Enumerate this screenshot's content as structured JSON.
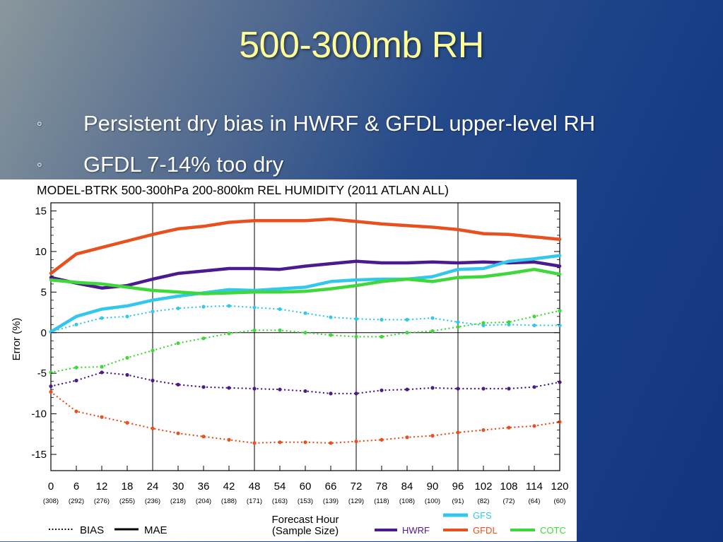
{
  "slide": {
    "title": "500-300mb RH",
    "bullets": [
      "Persistent dry bias in HWRF & GFDL upper-level RH",
      "GFDL 7-14% too dry"
    ],
    "bullet_glyph": "◦"
  },
  "chart_data": {
    "type": "line",
    "title": "MODEL-BTRK 500-300hPa 200-800km REL HUMIDITY (2011 ATLAN ALL)",
    "xlabel": "Forecast Hour",
    "xlabel2": "(Sample Size)",
    "ylabel": "Error (%)",
    "x": [
      0,
      6,
      12,
      18,
      24,
      30,
      36,
      42,
      48,
      54,
      60,
      66,
      72,
      78,
      84,
      90,
      96,
      102,
      108,
      114,
      120
    ],
    "sample_sizes": [
      "(308)",
      "(292)",
      "(276)",
      "(255)",
      "(236)",
      "(218)",
      "(204)",
      "(188)",
      "(171)",
      "(163)",
      "(153)",
      "(139)",
      "(129)",
      "(118)",
      "(108)",
      "(100)",
      "(91)",
      "(82)",
      "(72)",
      "(64)",
      "(60)"
    ],
    "xlim": [
      0,
      120
    ],
    "ylim": [
      -17,
      16
    ],
    "yticks": [
      15,
      10,
      5,
      0,
      -5,
      -10,
      -15
    ],
    "vertical_gridlines": [
      24,
      48,
      72,
      96
    ],
    "line_styles": {
      "BIAS": "dotted",
      "MAE": "solid"
    },
    "series": [
      {
        "name": "HWRF",
        "color": "#4b1a8e",
        "metric": "MAE",
        "values": [
          6.8,
          6.1,
          5.5,
          5.8,
          6.6,
          7.3,
          7.6,
          7.9,
          7.9,
          7.8,
          8.2,
          8.5,
          8.8,
          8.6,
          8.6,
          8.7,
          8.6,
          8.7,
          8.6,
          8.7,
          8.2
        ]
      },
      {
        "name": "GFDL",
        "color": "#e8501e",
        "metric": "MAE",
        "values": [
          7.3,
          9.7,
          10.5,
          11.3,
          12.1,
          12.8,
          13.1,
          13.6,
          13.8,
          13.8,
          13.8,
          14.0,
          13.7,
          13.4,
          13.2,
          13.0,
          12.7,
          12.2,
          12.1,
          11.8,
          11.5
        ]
      },
      {
        "name": "GFS",
        "color": "#33c7ee",
        "metric": "MAE",
        "values": [
          0.1,
          2.0,
          2.9,
          3.3,
          4.0,
          4.5,
          4.9,
          5.3,
          5.2,
          5.4,
          5.6,
          6.3,
          6.5,
          6.6,
          6.6,
          6.9,
          7.8,
          7.9,
          8.8,
          9.1,
          9.5
        ]
      },
      {
        "name": "COTC",
        "color": "#3fd83a",
        "metric": "MAE",
        "values": [
          6.5,
          6.2,
          6.0,
          5.6,
          5.2,
          5.0,
          4.8,
          4.9,
          5.0,
          5.0,
          5.1,
          5.4,
          5.8,
          6.3,
          6.6,
          6.3,
          6.8,
          6.9,
          7.3,
          7.8,
          7.2
        ]
      },
      {
        "name": "HWRF",
        "color": "#4b1a8e",
        "metric": "BIAS",
        "values": [
          -6.6,
          -5.9,
          -4.9,
          -5.2,
          -5.9,
          -6.4,
          -6.7,
          -6.8,
          -6.9,
          -7.0,
          -7.2,
          -7.5,
          -7.5,
          -7.1,
          -7.0,
          -6.8,
          -6.9,
          -6.9,
          -6.9,
          -6.7,
          -6.1
        ]
      },
      {
        "name": "GFDL",
        "color": "#e8501e",
        "metric": "BIAS",
        "values": [
          -7.3,
          -9.7,
          -10.4,
          -11.1,
          -11.8,
          -12.4,
          -12.8,
          -13.2,
          -13.6,
          -13.5,
          -13.5,
          -13.6,
          -13.4,
          -13.2,
          -12.9,
          -12.7,
          -12.3,
          -12.0,
          -11.7,
          -11.5,
          -11.0
        ]
      },
      {
        "name": "GFS",
        "color": "#33c7ee",
        "metric": "BIAS",
        "values": [
          0.1,
          1.0,
          1.8,
          2.0,
          2.6,
          3.0,
          3.2,
          3.3,
          3.1,
          2.9,
          2.4,
          1.9,
          1.7,
          1.6,
          1.6,
          1.8,
          1.3,
          0.9,
          1.0,
          0.9,
          0.9
        ]
      },
      {
        "name": "COTC",
        "color": "#3fd83a",
        "metric": "BIAS",
        "values": [
          -4.9,
          -4.3,
          -4.2,
          -3.1,
          -2.2,
          -1.3,
          -0.7,
          -0.1,
          0.3,
          0.3,
          0.0,
          -0.3,
          -0.5,
          -0.5,
          0.0,
          0.2,
          0.7,
          1.2,
          1.3,
          2.0,
          2.7
        ]
      }
    ],
    "legend": {
      "style_items": [
        {
          "label": "BIAS",
          "dash": "dotted"
        },
        {
          "label": "MAE",
          "dash": "solid"
        }
      ],
      "model_items": [
        {
          "label": "GFS",
          "color": "#33c7ee"
        },
        {
          "label": "HWRF",
          "color": "#4b1a8e"
        },
        {
          "label": "GFDL",
          "color": "#e8501e"
        },
        {
          "label": "COTC",
          "color": "#3fd83a"
        }
      ],
      "placement": "bottom"
    },
    "grid": "vertical lines at 24, 48, 72, 96 and horizontal zero line"
  }
}
